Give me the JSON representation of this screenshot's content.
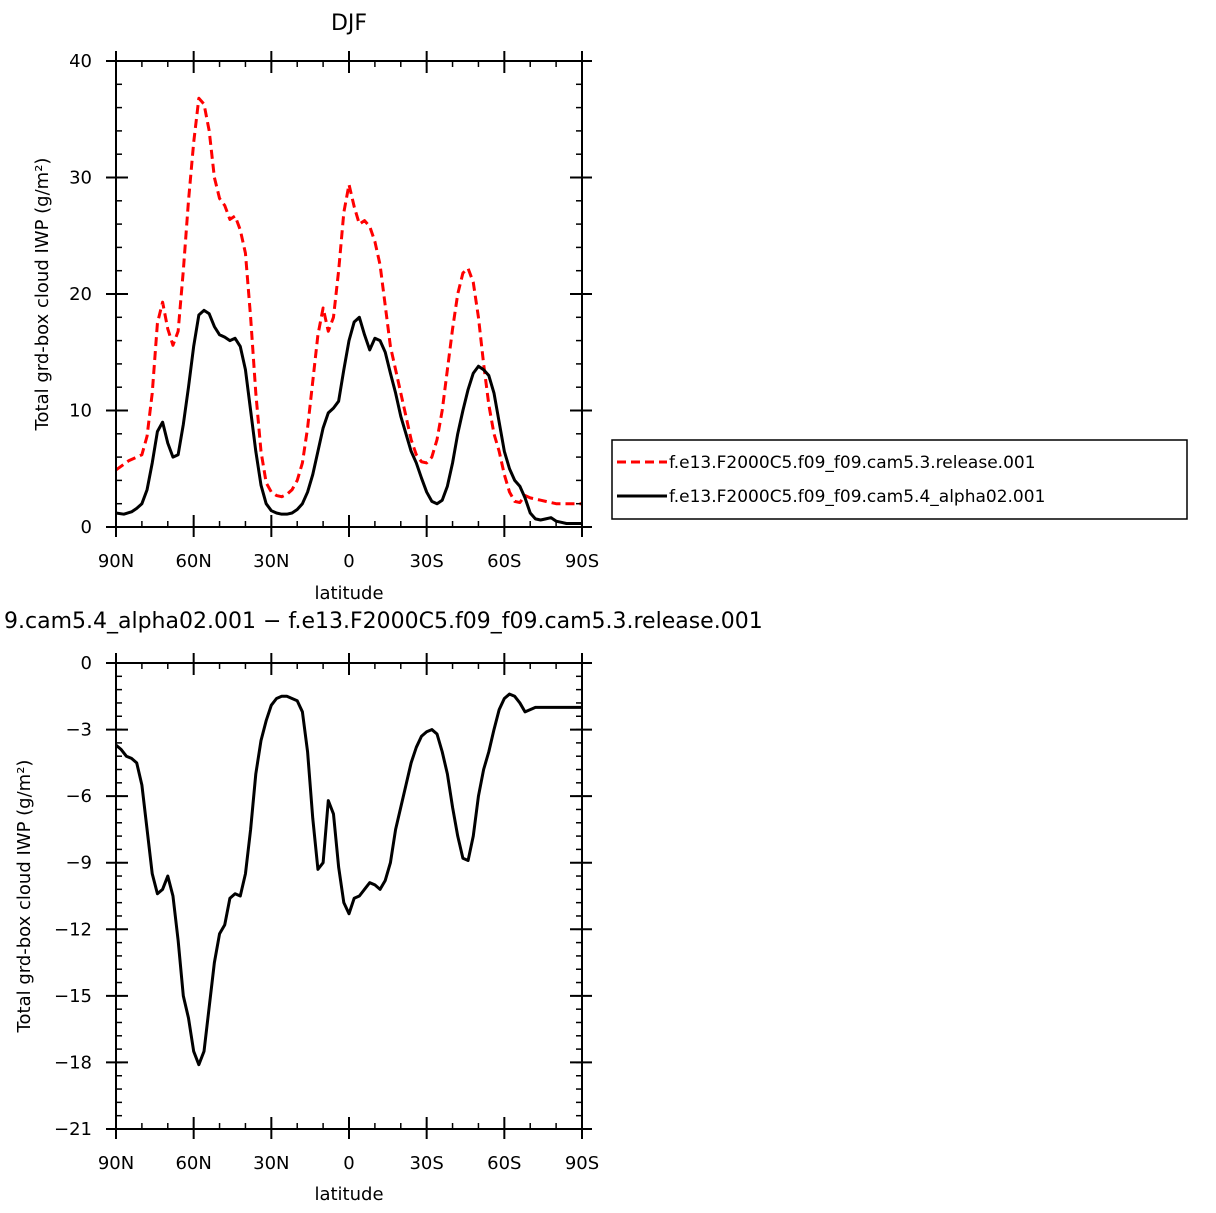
{
  "chart_data": [
    {
      "type": "line",
      "title": "DJF",
      "xlabel": "latitude",
      "ylabel": "Total grd-box cloud IWP (g/m²)",
      "xlim": [
        90,
        -90
      ],
      "ylim": [
        0,
        40
      ],
      "x_ticks": [
        90,
        60,
        30,
        0,
        -30,
        -60,
        -90
      ],
      "x_tick_labels": [
        "90N",
        "60N",
        "30N",
        "0",
        "30S",
        "60S",
        "90S"
      ],
      "y_ticks": [
        0,
        10,
        20,
        30,
        40
      ],
      "y_tick_labels": [
        "0",
        "10",
        "20",
        "30",
        "40"
      ],
      "legend_position": "right",
      "series": [
        {
          "name": "f.e13.F2000C5.f09_f09.cam5.3.release.001",
          "color": "#ff0000",
          "style": "dashed",
          "x": [
            90,
            85,
            80,
            78,
            76,
            74,
            72,
            70,
            68,
            66,
            64,
            62,
            60,
            58,
            56,
            54,
            52,
            50,
            48,
            46,
            44,
            42,
            40,
            38,
            36,
            34,
            32,
            30,
            28,
            26,
            24,
            22,
            20,
            18,
            16,
            14,
            12,
            10,
            8,
            6,
            4,
            2,
            0,
            -2,
            -4,
            -6,
            -8,
            -10,
            -12,
            -14,
            -16,
            -18,
            -20,
            -22,
            -24,
            -26,
            -28,
            -30,
            -32,
            -34,
            -36,
            -38,
            -40,
            -42,
            -44,
            -46,
            -48,
            -50,
            -52,
            -54,
            -56,
            -58,
            -60,
            -62,
            -64,
            -66,
            -68,
            -70,
            -72,
            -74,
            -76,
            -78,
            -80,
            -82,
            -84,
            -86,
            -88,
            -90
          ],
          "values": [
            4.9,
            5.7,
            6.2,
            7.8,
            11.5,
            17.5,
            19.3,
            17.0,
            15.6,
            16.8,
            22.0,
            28.0,
            33.0,
            36.8,
            36.3,
            34.0,
            30.0,
            28.2,
            27.6,
            26.4,
            26.7,
            25.5,
            23.5,
            18.0,
            11.5,
            6.5,
            3.8,
            3.0,
            2.7,
            2.6,
            2.8,
            3.2,
            4.0,
            5.5,
            8.5,
            12.5,
            16.5,
            18.8,
            16.8,
            18.0,
            22.0,
            27.0,
            29.4,
            27.5,
            26.0,
            26.3,
            25.8,
            24.5,
            22.5,
            19.0,
            15.5,
            13.5,
            11.5,
            9.5,
            7.5,
            6.2,
            5.6,
            5.5,
            6.0,
            7.5,
            10.0,
            13.5,
            17.0,
            20.0,
            21.8,
            22.2,
            21.0,
            18.0,
            14.0,
            10.5,
            8.0,
            6.5,
            4.5,
            3.0,
            2.2,
            2.1,
            2.7,
            2.5,
            2.4,
            2.3,
            2.2,
            2.1,
            2.0,
            2.0,
            2.0,
            2.0,
            2.0,
            2.0
          ]
        },
        {
          "name": "f.e13.F2000C5.f09_f09.cam5.4_alpha02.001",
          "color": "#000000",
          "style": "solid",
          "x": [
            90,
            87,
            84,
            82,
            80,
            78,
            76,
            74,
            72,
            70,
            68,
            66,
            64,
            62,
            60,
            58,
            56,
            54,
            52,
            50,
            48,
            46,
            44,
            42,
            40,
            38,
            36,
            34,
            32,
            30,
            28,
            26,
            24,
            22,
            20,
            18,
            16,
            14,
            12,
            10,
            8,
            6,
            4,
            2,
            0,
            -2,
            -4,
            -6,
            -8,
            -10,
            -12,
            -14,
            -16,
            -18,
            -20,
            -22,
            -24,
            -26,
            -28,
            -30,
            -32,
            -34,
            -36,
            -38,
            -40,
            -42,
            -44,
            -46,
            -48,
            -50,
            -52,
            -54,
            -56,
            -58,
            -60,
            -62,
            -64,
            -66,
            -68,
            -70,
            -72,
            -74,
            -76,
            -78,
            -80,
            -82,
            -84,
            -86,
            -88,
            -90
          ],
          "values": [
            1.2,
            1.1,
            1.3,
            1.6,
            2.0,
            3.2,
            5.5,
            8.2,
            9.0,
            7.2,
            6.0,
            6.2,
            8.8,
            12.0,
            15.5,
            18.2,
            18.6,
            18.3,
            17.2,
            16.5,
            16.3,
            16.0,
            16.2,
            15.5,
            13.5,
            10.0,
            6.5,
            3.6,
            2.0,
            1.4,
            1.2,
            1.1,
            1.1,
            1.2,
            1.5,
            2.0,
            3.0,
            4.5,
            6.5,
            8.5,
            9.8,
            10.2,
            10.8,
            13.5,
            16.0,
            17.6,
            18.0,
            16.5,
            15.2,
            16.2,
            16.0,
            15.0,
            13.2,
            11.5,
            9.5,
            8.0,
            6.5,
            5.5,
            4.2,
            3.0,
            2.2,
            2.0,
            2.3,
            3.5,
            5.5,
            8.0,
            10.0,
            11.8,
            13.2,
            13.8,
            13.5,
            13.0,
            11.5,
            9.0,
            6.5,
            5.0,
            4.0,
            3.5,
            2.5,
            1.2,
            0.7,
            0.6,
            0.7,
            0.8,
            0.5,
            0.4,
            0.3,
            0.3,
            0.3,
            0.3
          ]
        }
      ]
    },
    {
      "type": "line",
      "title": "9.cam5.4_alpha02.001 − f.e13.F2000C5.f09_f09.cam5.3.release.001",
      "xlabel": "latitude",
      "ylabel": "Total grd-box cloud IWP (g/m²)",
      "xlim": [
        90,
        -90
      ],
      "ylim": [
        -21,
        0
      ],
      "x_ticks": [
        90,
        60,
        30,
        0,
        -30,
        -60,
        -90
      ],
      "x_tick_labels": [
        "90N",
        "60N",
        "30N",
        "0",
        "30S",
        "60S",
        "90S"
      ],
      "y_ticks": [
        0,
        -3,
        -6,
        -9,
        -12,
        -15,
        -18,
        -21
      ],
      "y_tick_labels": [
        "0",
        "−3",
        "−6",
        "−9",
        "−12",
        "−15",
        "−18",
        "−21"
      ],
      "series": [
        {
          "color": "#000000",
          "style": "solid",
          "x": [
            90,
            88,
            86,
            84,
            82,
            80,
            78,
            76,
            74,
            72,
            70,
            68,
            66,
            64,
            62,
            60,
            58,
            56,
            54,
            52,
            50,
            48,
            46,
            44,
            42,
            40,
            38,
            36,
            34,
            32,
            30,
            28,
            26,
            24,
            22,
            20,
            18,
            16,
            14,
            12,
            10,
            8,
            6,
            4,
            2,
            0,
            -2,
            -4,
            -6,
            -8,
            -10,
            -12,
            -14,
            -16,
            -18,
            -20,
            -22,
            -24,
            -26,
            -28,
            -30,
            -32,
            -34,
            -36,
            -38,
            -40,
            -42,
            -44,
            -46,
            -48,
            -50,
            -52,
            -54,
            -56,
            -58,
            -60,
            -62,
            -64,
            -66,
            -68,
            -70,
            -72,
            -74,
            -76,
            -78,
            -80,
            -82,
            -84,
            -86,
            -88,
            -90
          ],
          "values": [
            -3.7,
            -3.9,
            -4.2,
            -4.3,
            -4.5,
            -5.5,
            -7.5,
            -9.5,
            -10.4,
            -10.2,
            -9.6,
            -10.5,
            -12.5,
            -15.0,
            -16.0,
            -17.5,
            -18.1,
            -17.5,
            -15.5,
            -13.5,
            -12.2,
            -11.8,
            -10.6,
            -10.4,
            -10.5,
            -9.5,
            -7.5,
            -5.0,
            -3.5,
            -2.6,
            -1.9,
            -1.6,
            -1.5,
            -1.5,
            -1.6,
            -1.7,
            -2.2,
            -4.0,
            -7.0,
            -9.3,
            -9.0,
            -6.2,
            -6.8,
            -9.2,
            -10.8,
            -11.3,
            -10.6,
            -10.5,
            -10.2,
            -9.9,
            -10.0,
            -10.2,
            -9.8,
            -9.0,
            -7.5,
            -6.5,
            -5.5,
            -4.5,
            -3.8,
            -3.3,
            -3.1,
            -3.0,
            -3.2,
            -4.0,
            -5.0,
            -6.5,
            -7.8,
            -8.8,
            -8.9,
            -7.8,
            -6.0,
            -4.8,
            -4.0,
            -3.0,
            -2.1,
            -1.6,
            -1.4,
            -1.5,
            -1.8,
            -2.2,
            -2.1,
            -2.0,
            -2.0,
            -2.0,
            -2.0,
            -2.0,
            -2.0,
            -2.0,
            -2.0,
            -2.0,
            -2.0
          ]
        }
      ]
    }
  ]
}
